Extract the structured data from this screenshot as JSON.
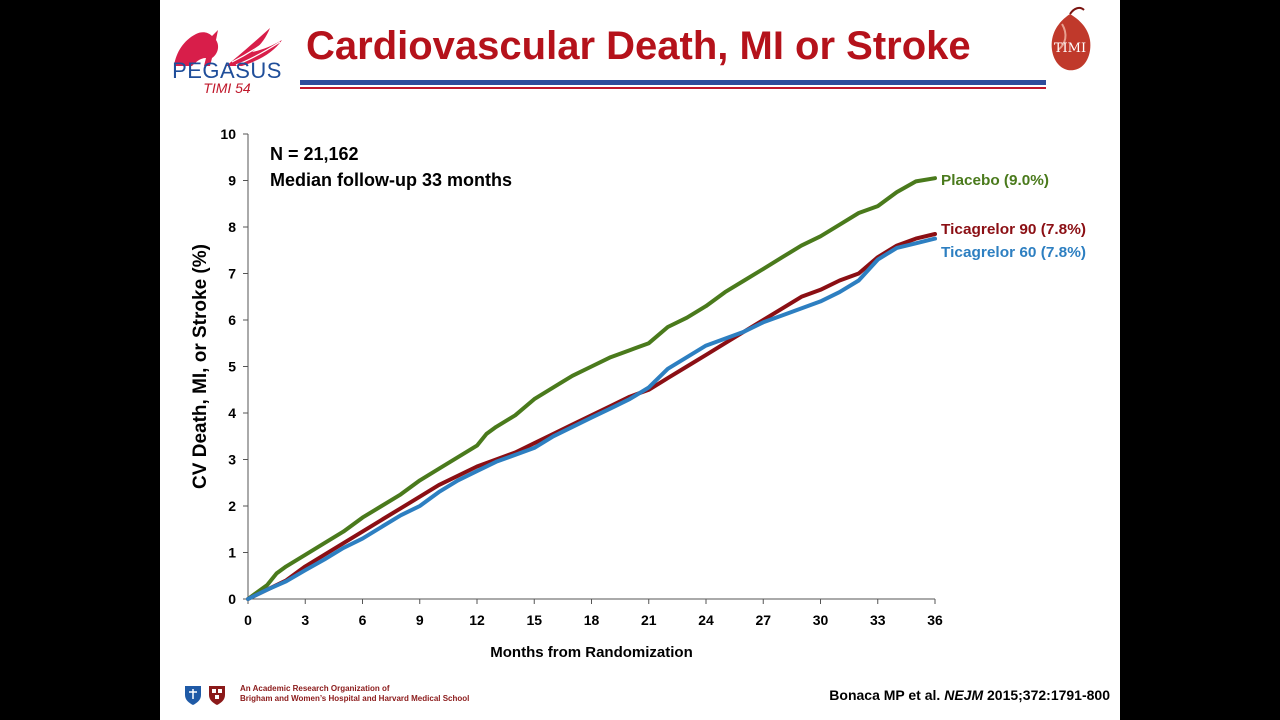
{
  "header": {
    "title": "Cardiovascular Death, MI or Stroke",
    "logo_text": "PEGASUS",
    "logo_sub": "TIMI 54",
    "timi_logo_text": "TIMI"
  },
  "footer": {
    "org_line1": "An Academic Research Organization of",
    "org_line2": "Brigham and Women’s Hospital and Harvard Medical School",
    "citation_pre": "Bonaca MP et al. ",
    "citation_journal": "NEJM",
    "citation_post": " 2015;372:1791-800"
  },
  "colors": {
    "placebo": "#4a7a1c",
    "ticagrelor90": "#8b0f14",
    "ticagrelor60": "#2d7fc1",
    "title": "#b5121b"
  },
  "chart_data": {
    "type": "line",
    "xlabel": "Months from Randomization",
    "ylabel": "CV Death, MI, or Stroke (%)",
    "xlim": [
      0,
      36
    ],
    "ylim": [
      0,
      10
    ],
    "xticks": [
      0,
      3,
      6,
      9,
      12,
      15,
      18,
      21,
      24,
      27,
      30,
      33,
      36
    ],
    "yticks": [
      0,
      1,
      2,
      3,
      4,
      5,
      6,
      7,
      8,
      9,
      10
    ],
    "annotations": [
      "N = 21,162",
      "Median follow-up 33 months"
    ],
    "series": [
      {
        "name": "Placebo (9.0%)",
        "key": "placebo",
        "x": [
          0,
          1,
          1.5,
          2,
          3,
          4,
          5,
          6,
          7,
          8,
          9,
          10,
          11,
          12,
          12.5,
          13,
          14,
          15,
          16,
          17,
          18,
          19,
          20,
          21,
          22,
          23,
          24,
          25,
          26,
          27,
          28,
          29,
          30,
          31,
          32,
          33,
          34,
          35,
          36
        ],
        "y": [
          0,
          0.3,
          0.55,
          0.7,
          0.95,
          1.2,
          1.45,
          1.75,
          2.0,
          2.25,
          2.55,
          2.8,
          3.05,
          3.3,
          3.55,
          3.7,
          3.95,
          4.3,
          4.55,
          4.8,
          5.0,
          5.2,
          5.35,
          5.5,
          5.85,
          6.05,
          6.3,
          6.6,
          6.85,
          7.1,
          7.35,
          7.6,
          7.8,
          8.05,
          8.3,
          8.45,
          8.75,
          8.98,
          9.05
        ]
      },
      {
        "name": "Ticagrelor 90 (7.8%)",
        "key": "ticagrelor90",
        "x": [
          0,
          1,
          2,
          3,
          4,
          5,
          6,
          7,
          8,
          9,
          10,
          11,
          12,
          13,
          14,
          15,
          16,
          17,
          18,
          19,
          20,
          21,
          22,
          23,
          24,
          25,
          26,
          27,
          28,
          29,
          30,
          31,
          32,
          33,
          34,
          35,
          36
        ],
        "y": [
          0,
          0.2,
          0.4,
          0.7,
          0.95,
          1.2,
          1.45,
          1.7,
          1.95,
          2.2,
          2.45,
          2.65,
          2.85,
          3.0,
          3.15,
          3.35,
          3.55,
          3.75,
          3.95,
          4.15,
          4.35,
          4.5,
          4.75,
          5.0,
          5.25,
          5.5,
          5.75,
          6.0,
          6.25,
          6.5,
          6.65,
          6.85,
          7.0,
          7.35,
          7.6,
          7.75,
          7.85
        ]
      },
      {
        "name": "Ticagrelor 60 (7.8%)",
        "key": "ticagrelor60",
        "x": [
          0,
          1,
          2,
          3,
          4,
          5,
          6,
          7,
          8,
          9,
          10,
          11,
          12,
          13,
          14,
          15,
          16,
          17,
          18,
          19,
          20,
          21,
          22,
          23,
          24,
          25,
          26,
          27,
          28,
          29,
          30,
          31,
          32,
          33,
          34,
          35,
          36
        ],
        "y": [
          0,
          0.2,
          0.38,
          0.62,
          0.85,
          1.1,
          1.3,
          1.55,
          1.8,
          2.0,
          2.3,
          2.55,
          2.75,
          2.95,
          3.1,
          3.25,
          3.5,
          3.7,
          3.9,
          4.1,
          4.3,
          4.55,
          4.95,
          5.2,
          5.45,
          5.6,
          5.75,
          5.95,
          6.1,
          6.25,
          6.4,
          6.6,
          6.85,
          7.3,
          7.55,
          7.65,
          7.75
        ]
      }
    ]
  }
}
